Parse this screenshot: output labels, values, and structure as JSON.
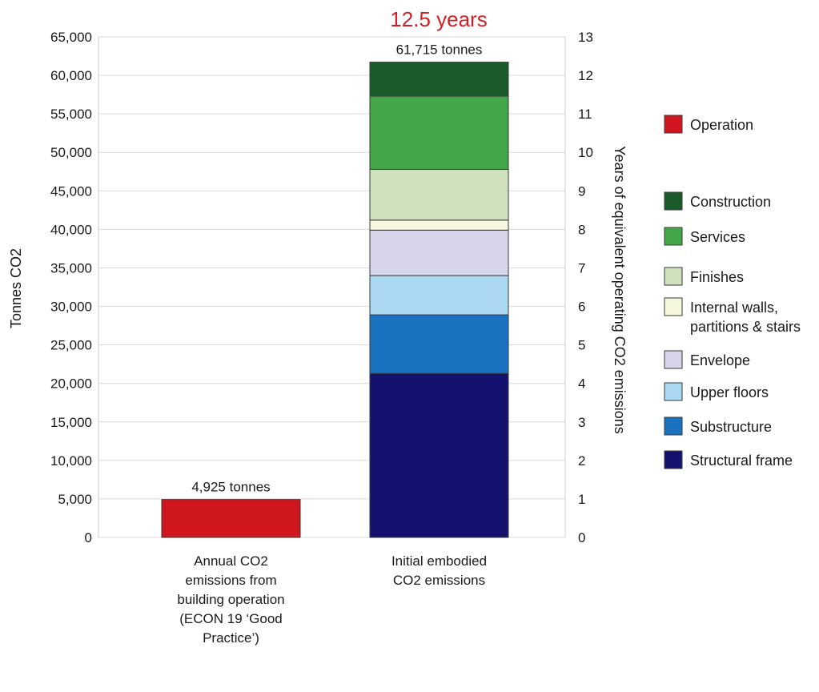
{
  "chart_data": {
    "type": "bar",
    "stacked": true,
    "title": "12.5 years",
    "title_color": "#d21f26",
    "ylabel": "Tonnes CO2",
    "ylabel_right": "Years of equivalent operating CO2 emissions",
    "ylim": [
      0,
      65000
    ],
    "ylim_right": [
      0,
      13
    ],
    "yticks": [
      "0",
      "5,000",
      "10,000",
      "15,000",
      "20,000",
      "25,000",
      "30,000",
      "35,000",
      "40,000",
      "45,000",
      "50,000",
      "55,000",
      "60,000",
      "65,000"
    ],
    "yticks_right": [
      "0",
      "1",
      "2",
      "3",
      "4",
      "5",
      "6",
      "7",
      "8",
      "9",
      "10",
      "11",
      "12",
      "13"
    ],
    "grid": true,
    "categories": [
      [
        "Annual CO2",
        "emissions from",
        "building operation",
        "(ECON 19 ‘Good",
        "Practice’)"
      ],
      [
        "Initial embodied",
        "CO2  emissions"
      ]
    ],
    "bar_labels": [
      "4,925 tonnes",
      "61,715 tonnes"
    ],
    "series": [
      {
        "name": "Operation",
        "color": "#d0161e",
        "values": [
          4925,
          0
        ]
      },
      {
        "name": "Structural frame",
        "color": "#14126f",
        "values": [
          0,
          21300
        ]
      },
      {
        "name": "Substructure",
        "color": "#1a72c1",
        "values": [
          0,
          7600
        ]
      },
      {
        "name": "Upper floors",
        "color": "#abd8f3",
        "values": [
          0,
          5100
        ]
      },
      {
        "name": "Envelope",
        "color": "#d7d5ea",
        "values": [
          0,
          5900
        ]
      },
      {
        "name": "Internal walls, partitions & stairs",
        "color": "#f5f8dc",
        "values": [
          0,
          1300
        ]
      },
      {
        "name": "Finishes",
        "color": "#cfe1bd",
        "values": [
          0,
          6600
        ]
      },
      {
        "name": "Services",
        "color": "#43a74a",
        "values": [
          0,
          9500
        ]
      },
      {
        "name": "Construction",
        "color": "#1a5a2b",
        "values": [
          0,
          4415
        ]
      }
    ],
    "legend": {
      "placement": "right",
      "items": [
        {
          "label": [
            "Operation"
          ],
          "color": "#d0161e"
        },
        {
          "label": [
            "Construction"
          ],
          "color": "#1a5a2b"
        },
        {
          "label": [
            "Services"
          ],
          "color": "#43a74a"
        },
        {
          "label": [
            "Finishes"
          ],
          "color": "#cfe1bd"
        },
        {
          "label": [
            "Internal walls,",
            "partitions & stairs"
          ],
          "color": "#f5f8dc"
        },
        {
          "label": [
            "Envelope"
          ],
          "color": "#d7d5ea"
        },
        {
          "label": [
            "Upper floors"
          ],
          "color": "#abd8f3"
        },
        {
          "label": [
            "Substructure"
          ],
          "color": "#1a72c1"
        },
        {
          "label": [
            "Structural frame"
          ],
          "color": "#14126f"
        }
      ]
    }
  }
}
